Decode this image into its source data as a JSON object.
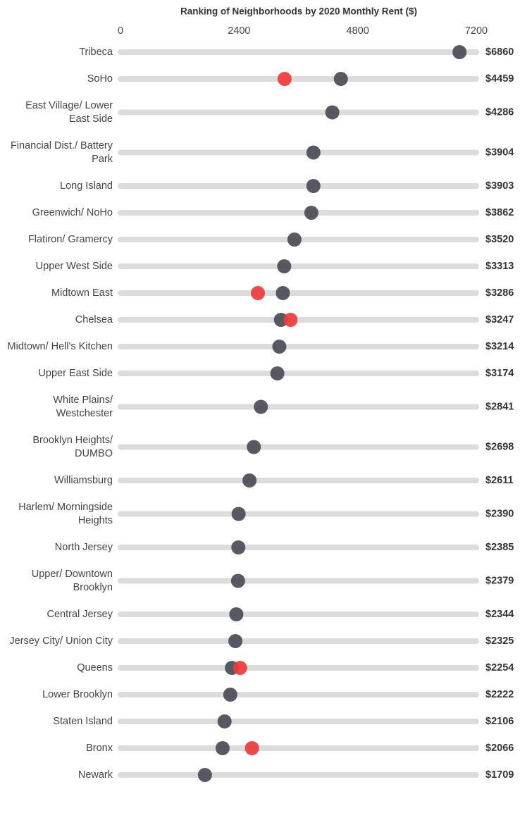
{
  "chart_data": {
    "type": "dot",
    "title": "Ranking of Neighborhoods by 2020 Monthly Rent ($)",
    "categories": [
      "Tribeca",
      "SoHo",
      "East Village/ Lower East Side",
      "Financial Dist./ Battery Park",
      "Long Island",
      "Greenwich/ NoHo",
      "Flatiron/ Gramercy",
      "Upper West Side",
      "Midtown East",
      "Chelsea",
      "Midtown/ Hell's Kitchen",
      "Upper East Side",
      "White Plains/ Westchester",
      "Brooklyn Heights/ DUMBO",
      "Williamsburg",
      "Harlem/ Morningside Heights",
      "North Jersey",
      "Upper/ Downtown Brooklyn",
      "Central Jersey",
      "Jersey City/ Union City",
      "Queens",
      "Lower Brooklyn",
      "Staten Island",
      "Bronx",
      "Newark"
    ],
    "series": [
      {
        "color": "#4a4b55",
        "values": [
          6860,
          4459,
          4286,
          3904,
          3903,
          3862,
          3520,
          3313,
          3286,
          3247,
          3214,
          3174,
          2841,
          2698,
          2611,
          2390,
          2385,
          2379,
          2344,
          2325,
          2254,
          2222,
          2106,
          2066,
          1709
        ],
        "value_labels": [
          "$6860",
          "$4459",
          "$4286",
          "$3904",
          "$3903",
          "$3862",
          "$3520",
          "$3313",
          "$3286",
          "$3247",
          "$3214",
          "$3174",
          "$2841",
          "$2698",
          "$2611",
          "$2390",
          "$2385",
          "$2379",
          "$2344",
          "$2325",
          "$2254",
          "$2222",
          "$2106",
          "$2066",
          "$1709"
        ]
      },
      {
        "color": "#f03a3a",
        "values": [
          null,
          3320,
          null,
          null,
          null,
          null,
          null,
          null,
          2780,
          3440,
          null,
          null,
          null,
          null,
          null,
          null,
          null,
          null,
          null,
          null,
          2420,
          null,
          null,
          2660,
          null
        ]
      }
    ],
    "xlim": [
      0,
      7200
    ],
    "xticks": [
      0,
      2400,
      4800,
      7200
    ]
  }
}
